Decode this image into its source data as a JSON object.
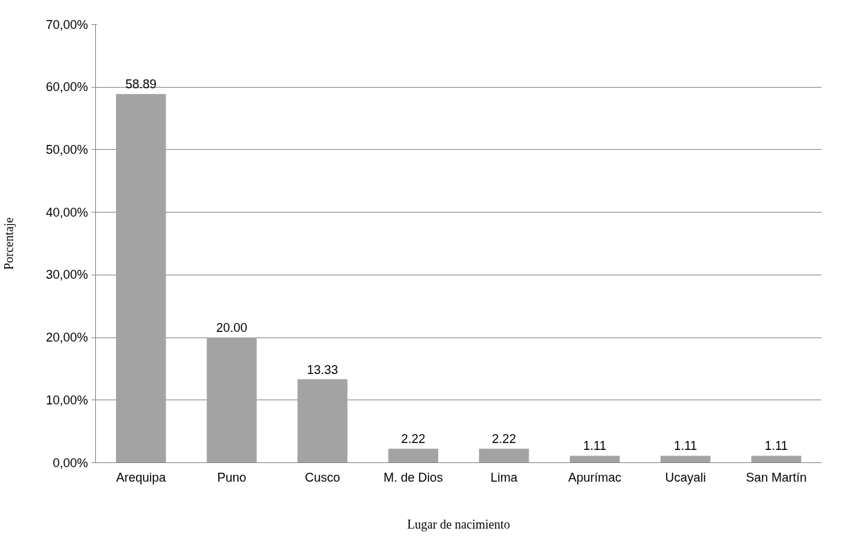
{
  "chart_data": {
    "type": "bar",
    "xlabel": "Lugar de nacimiento",
    "ylabel": "Porcentaje",
    "categories": [
      "Arequipa",
      "Puno",
      "Cusco",
      "M. de Dios",
      "Lima",
      "Apurímac",
      "Ucayali",
      "San Martín"
    ],
    "values": [
      58.89,
      20.0,
      13.33,
      2.22,
      2.22,
      1.11,
      1.11,
      1.11
    ],
    "value_labels": [
      "58.89",
      "20.00",
      "13.33",
      "2.22",
      "2.22",
      "1.11",
      "1.11",
      "1.11"
    ],
    "color": "#a3a3a3",
    "ylim": [
      0,
      70
    ],
    "yticks": [
      {
        "value": 0,
        "label": "0,00%"
      },
      {
        "value": 10,
        "label": "10,00%"
      },
      {
        "value": 20,
        "label": "20,00%"
      },
      {
        "value": 30,
        "label": "30,00%"
      },
      {
        "value": 40,
        "label": "40,00%"
      },
      {
        "value": 50,
        "label": "50,00%"
      },
      {
        "value": 60,
        "label": "60,00%"
      },
      {
        "value": 70,
        "label": "70,00%"
      }
    ],
    "grid": "y"
  }
}
